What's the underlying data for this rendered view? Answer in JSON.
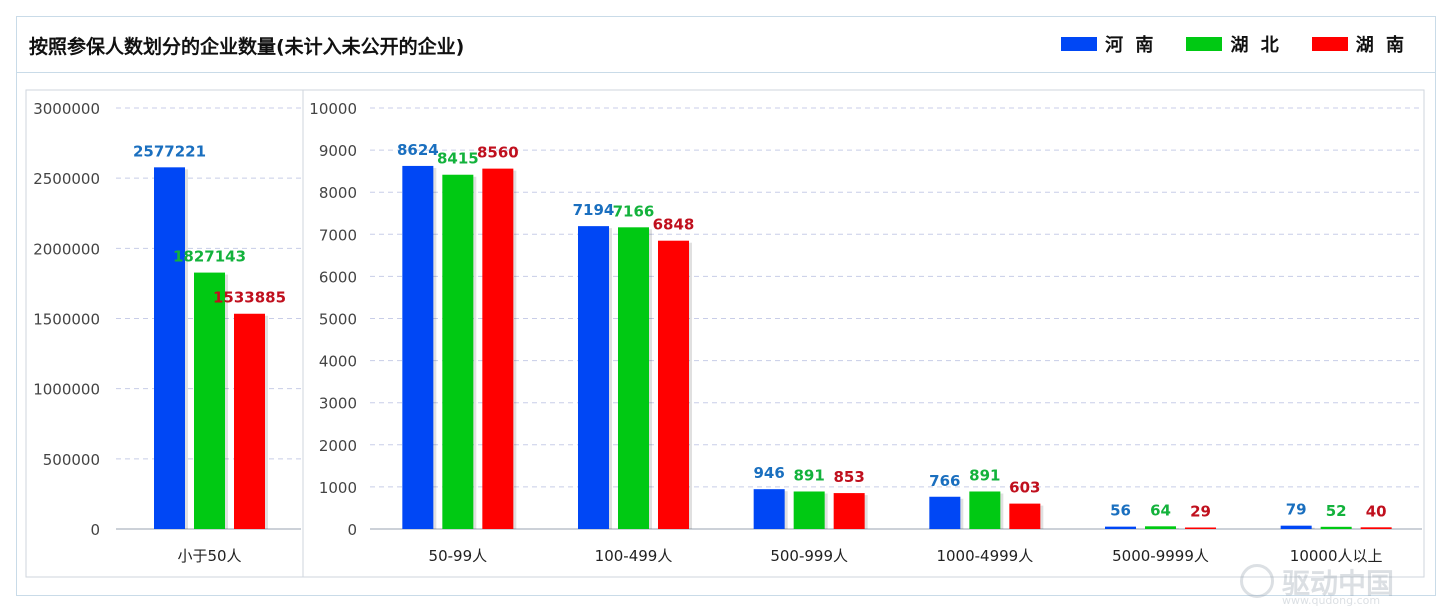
{
  "title": "按照参保人数划分的企业数量(未计入未公开的企业)",
  "legend": [
    {
      "name": "河 南",
      "color": "#0047f5"
    },
    {
      "name": "湖 北",
      "color": "#00c913"
    },
    {
      "name": "湖 南",
      "color": "#ff0000"
    }
  ],
  "label_colors": [
    "#1a6fbf",
    "#13b23c",
    "#c0101e"
  ],
  "watermark": {
    "name": "驱动中国",
    "url": "www.qudong.com"
  },
  "chart_data": [
    {
      "type": "bar",
      "categories": [
        "小于50人"
      ],
      "series": [
        {
          "name": "河南",
          "values": [
            2577221
          ]
        },
        {
          "name": "湖北",
          "values": [
            1827143
          ]
        },
        {
          "name": "湖南",
          "values": [
            1533885
          ]
        }
      ],
      "ylim": [
        0,
        3000000
      ],
      "yticks": [
        0,
        500000,
        1000000,
        1500000,
        2000000,
        2500000,
        3000000
      ]
    },
    {
      "type": "bar",
      "categories": [
        "50-99人",
        "100-499人",
        "500-999人",
        "1000-4999人",
        "5000-9999人",
        "10000人以上"
      ],
      "series": [
        {
          "name": "河南",
          "values": [
            8624,
            7194,
            946,
            766,
            56,
            79
          ]
        },
        {
          "name": "湖北",
          "values": [
            8415,
            7166,
            891,
            891,
            64,
            52
          ]
        },
        {
          "name": "湖南",
          "values": [
            8560,
            6848,
            853,
            603,
            29,
            40
          ]
        }
      ],
      "ylim": [
        0,
        10000
      ],
      "yticks": [
        0,
        1000,
        2000,
        3000,
        4000,
        5000,
        6000,
        7000,
        8000,
        9000,
        10000
      ]
    }
  ]
}
